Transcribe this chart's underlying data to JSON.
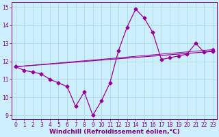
{
  "line_main": {
    "x": [
      0,
      1,
      2,
      3,
      4,
      5,
      6,
      7,
      8,
      9,
      10,
      11,
      12,
      13,
      14,
      15,
      16,
      17,
      18,
      19,
      20,
      21,
      22,
      23
    ],
    "y": [
      11.7,
      11.5,
      11.4,
      11.3,
      11.0,
      10.8,
      10.6,
      9.5,
      10.3,
      9.0,
      9.8,
      10.8,
      12.6,
      13.9,
      14.9,
      14.4,
      13.6,
      12.1,
      12.2,
      12.3,
      12.4,
      13.0,
      12.5,
      12.6
    ],
    "color": "#990099",
    "linewidth": 0.9,
    "marker": "D",
    "markersize": 2.5
  },
  "line_trend1": {
    "x": [
      0,
      23
    ],
    "y": [
      11.7,
      12.55
    ],
    "color": "#990099",
    "linewidth": 0.9,
    "marker": "D",
    "markersize": 2.5
  },
  "line_trend2": {
    "x": [
      0,
      23
    ],
    "y": [
      11.7,
      12.65
    ],
    "color": "#990099",
    "linewidth": 0.7,
    "marker": "D",
    "markersize": 2.0
  },
  "background_color": "#cceeff",
  "grid_color": "#aadddd",
  "xlabel": "Windchill (Refroidissement éolien,°C)",
  "xlabel_fontsize": 6.5,
  "xlim": [
    -0.5,
    23.5
  ],
  "ylim": [
    8.8,
    15.3
  ],
  "yticks": [
    9,
    10,
    11,
    12,
    13,
    14,
    15
  ],
  "xticks": [
    0,
    1,
    2,
    3,
    4,
    5,
    6,
    7,
    8,
    9,
    10,
    11,
    12,
    13,
    14,
    15,
    16,
    17,
    18,
    19,
    20,
    21,
    22,
    23
  ],
  "tick_fontsize": 5.5,
  "axis_color": "#800080",
  "spine_color": "#800080"
}
